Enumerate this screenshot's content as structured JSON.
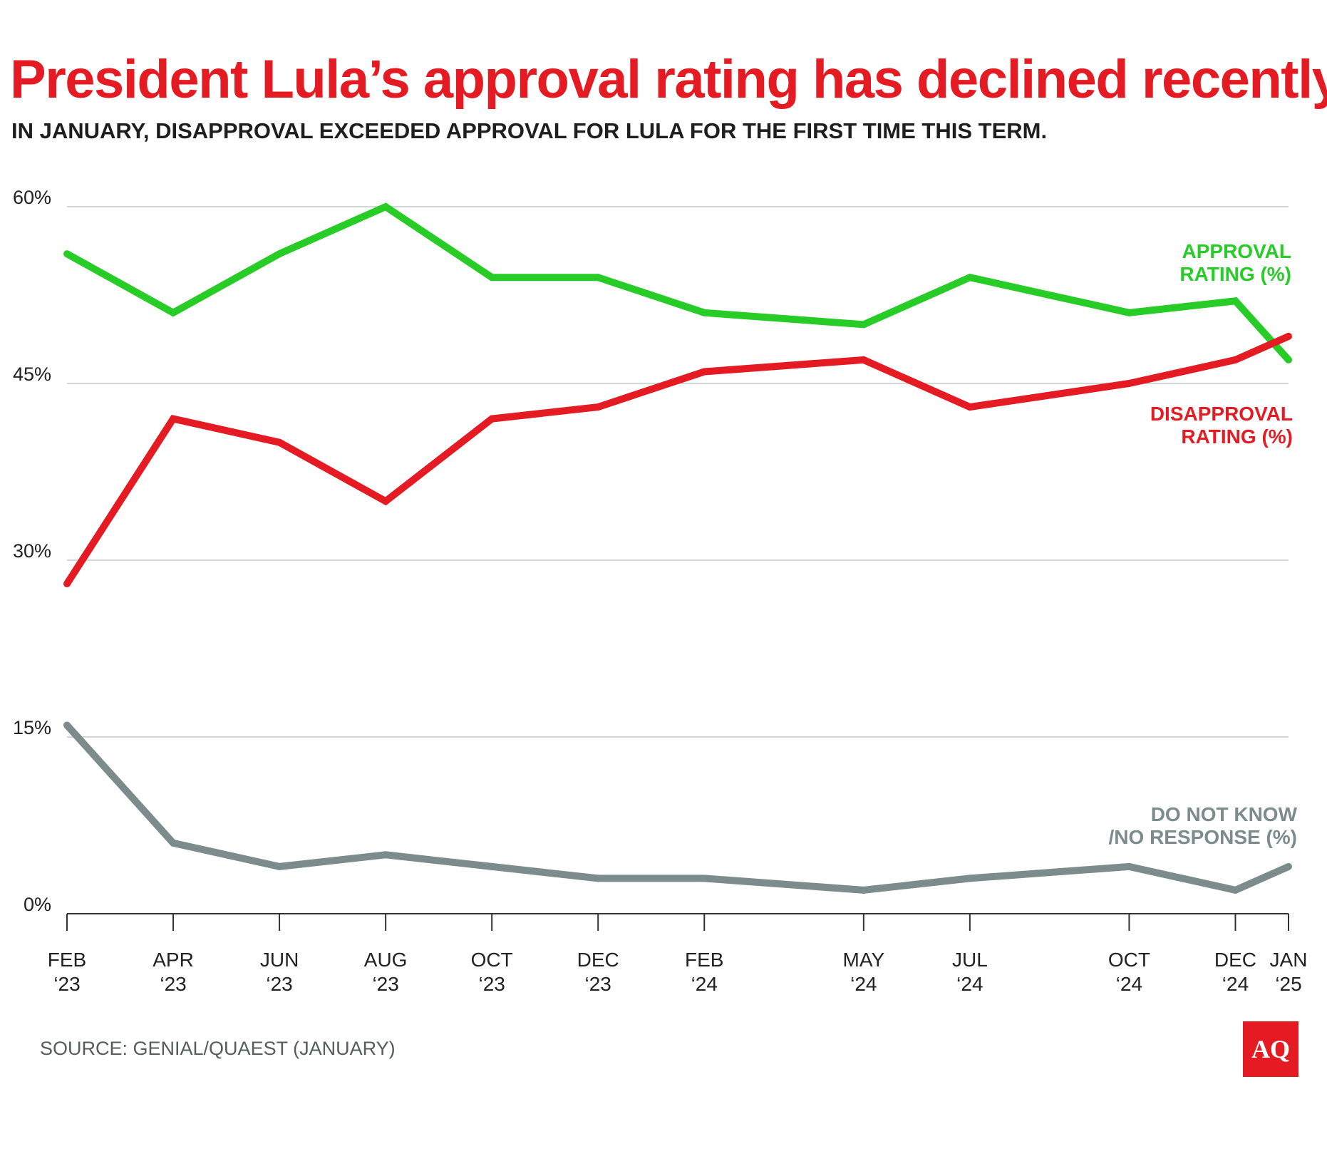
{
  "title": "President Lula’s approval rating has declined recently",
  "subtitle": "IN JANUARY, DISAPPROVAL EXCEEDED APPROVAL FOR LULA FOR THE FIRST TIME THIS TERM.",
  "source": "SOURCE: GENIAL/QUAEST (JANUARY)",
  "logo_text": "AQ",
  "chart_data": {
    "type": "line",
    "title": "President Lula’s approval rating has declined recently",
    "xlabel": "",
    "ylabel": "",
    "ylim": [
      0,
      60
    ],
    "yticks": [
      0,
      15,
      30,
      45,
      60
    ],
    "ytick_labels": [
      "0%",
      "15%",
      "30%",
      "45%",
      "60%"
    ],
    "grid": true,
    "x_month_index": [
      0,
      2,
      4,
      6,
      8,
      10,
      12,
      15,
      17,
      20,
      22,
      23
    ],
    "x_line1": [
      "FEB",
      "APR",
      "JUN",
      "AUG",
      "OCT",
      "DEC",
      "FEB",
      "MAY",
      "JUL",
      "OCT",
      "DEC",
      "JAN"
    ],
    "x_line2": [
      "‘23",
      "‘23",
      "‘23",
      "‘23",
      "‘23",
      "‘23",
      "‘24",
      "‘24",
      "‘24",
      "‘24",
      "‘24",
      "‘25"
    ],
    "series": [
      {
        "name": "APPROVAL RATING (%)",
        "label_lines": [
          "APPROVAL",
          "RATING (%)"
        ],
        "color": "#27cc27",
        "values": [
          56,
          51,
          56,
          60,
          54,
          54,
          51,
          50,
          54,
          51,
          52,
          47
        ]
      },
      {
        "name": "DISAPPROVAL RATING (%)",
        "label_lines": [
          "DISAPPROVAL",
          "RATING (%)"
        ],
        "color": "#e41b23",
        "values": [
          28,
          42,
          40,
          35,
          42,
          43,
          46,
          47,
          43,
          45,
          47,
          49
        ]
      },
      {
        "name": "DO NOT KNOW /NO RESPONSE (%)",
        "label_lines": [
          "DO NOT KNOW",
          "/NO RESPONSE (%)"
        ],
        "color": "#7c8b8b",
        "values": [
          16,
          6,
          4,
          5,
          4,
          3,
          3,
          2,
          3,
          4,
          2,
          4
        ]
      }
    ]
  }
}
